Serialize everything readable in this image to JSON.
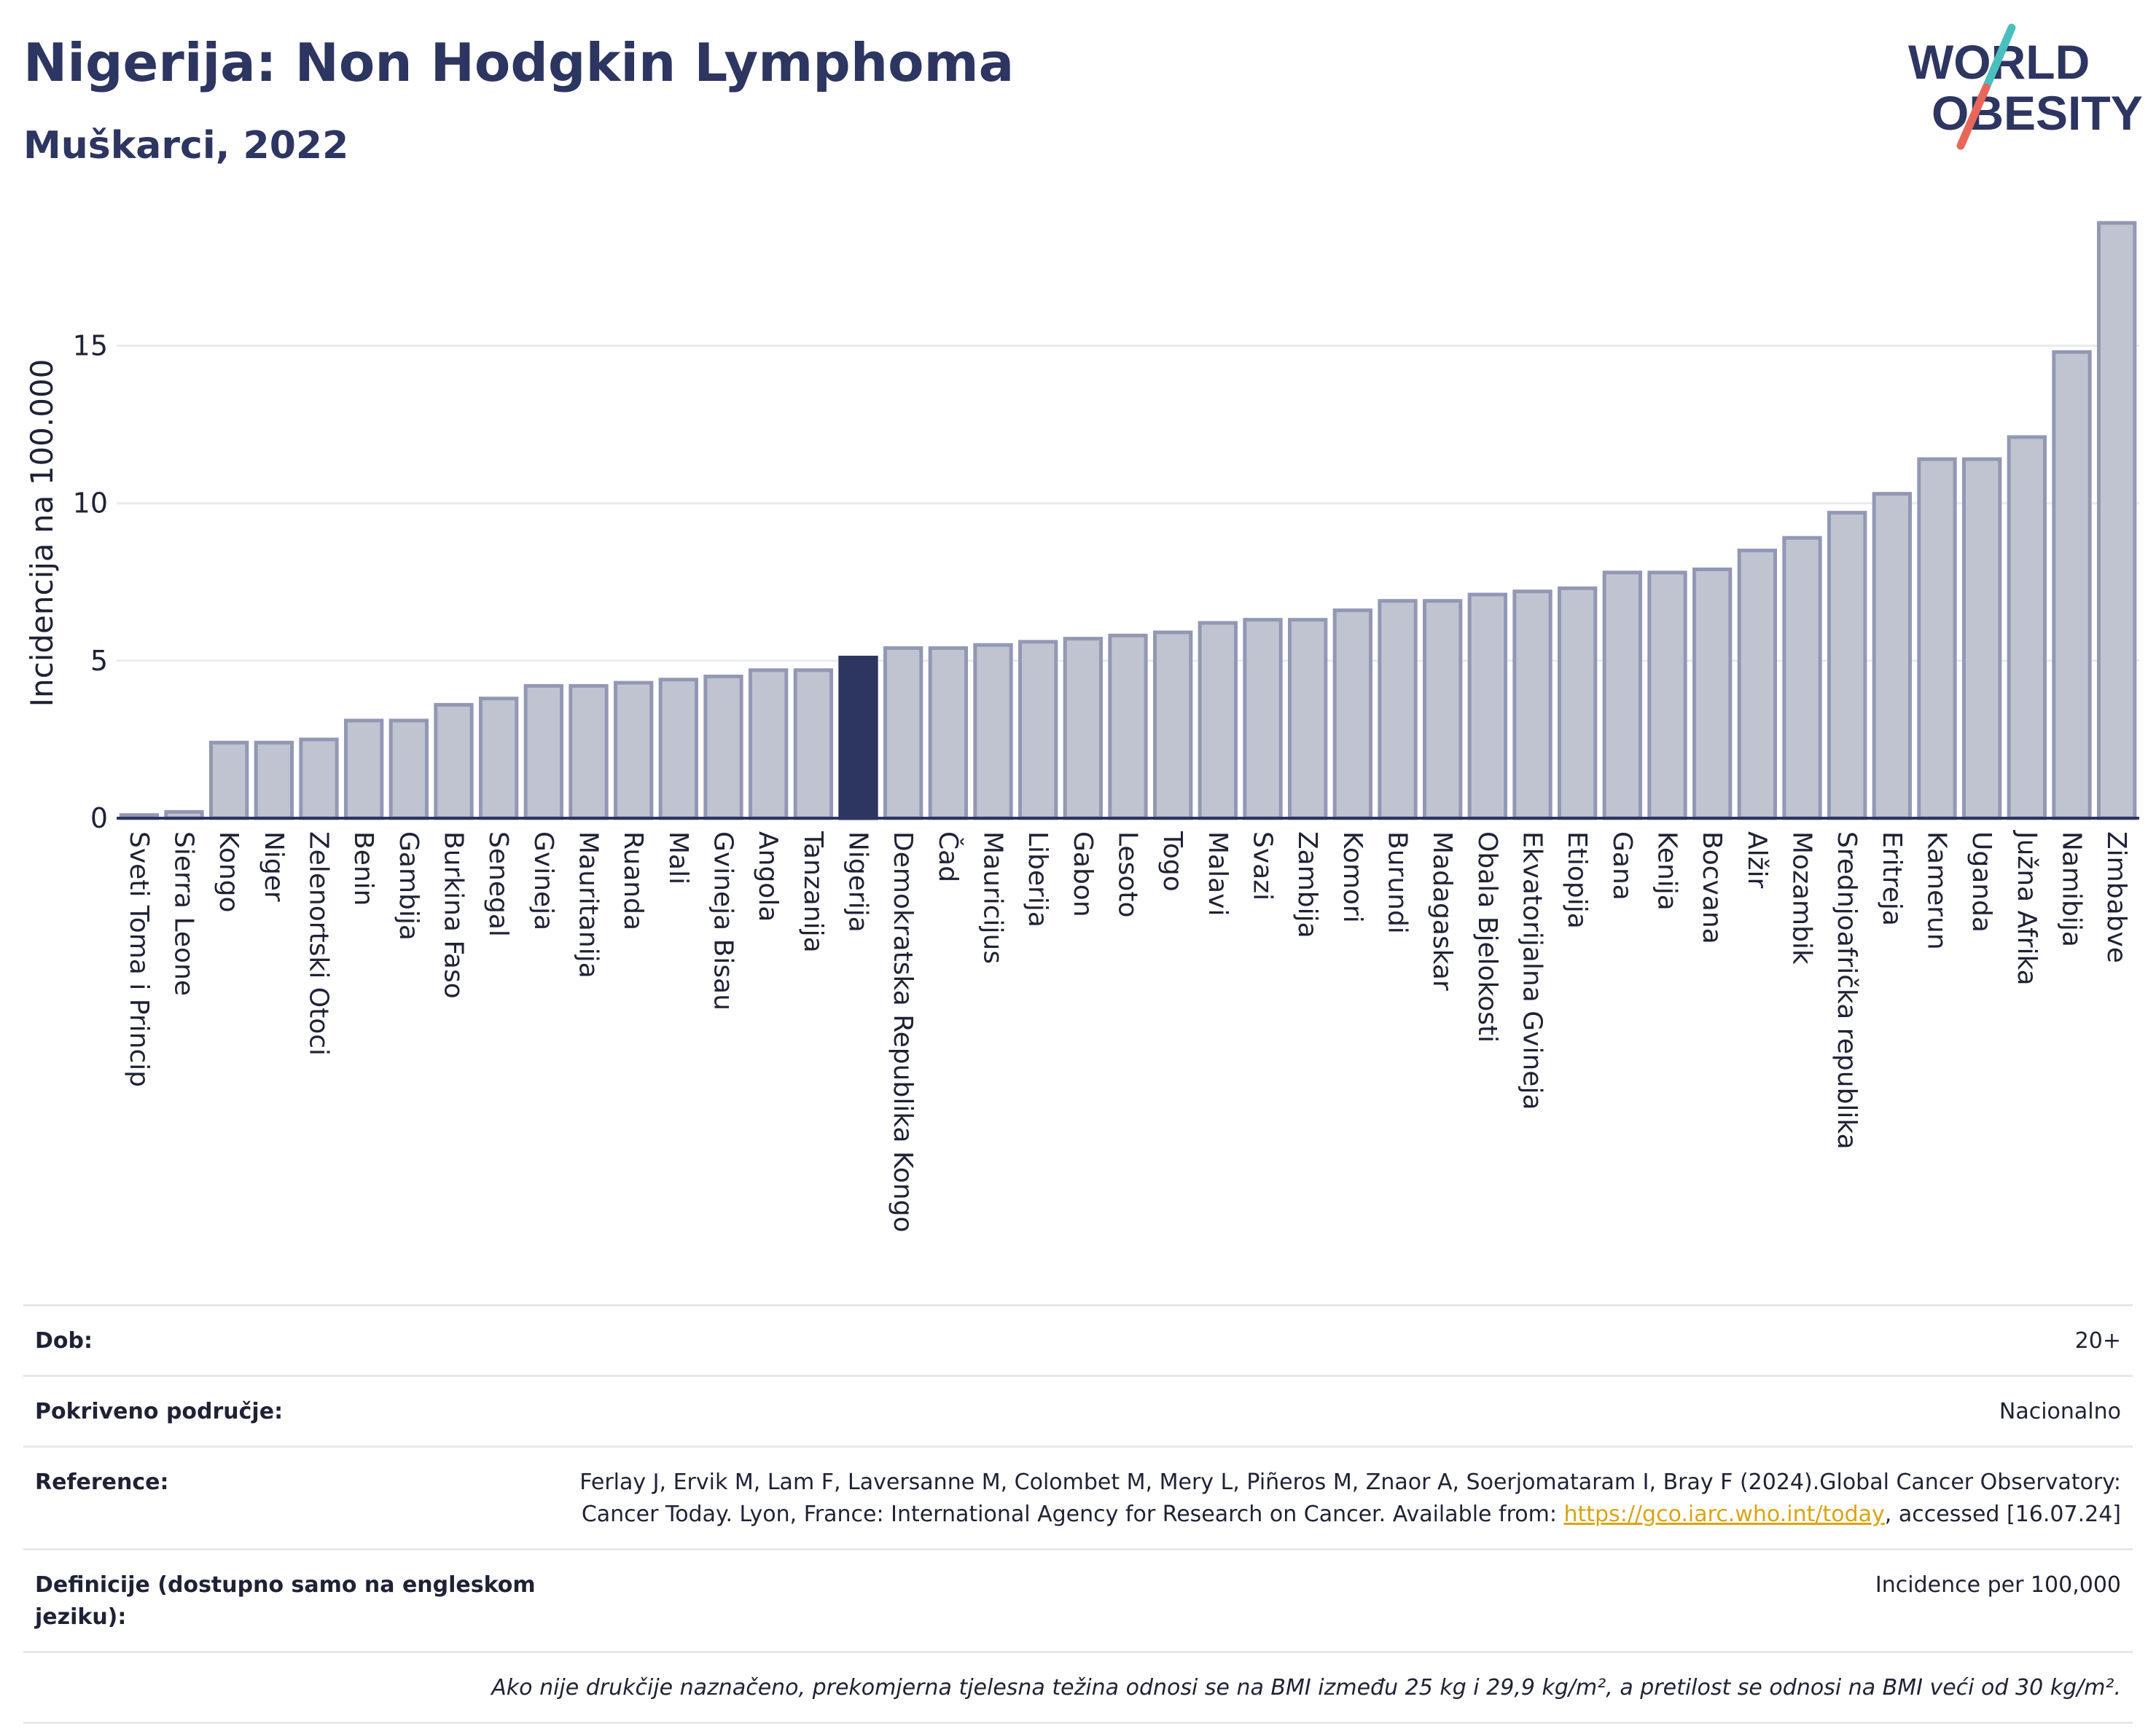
{
  "header": {
    "title": "Nigerija: Non Hodgkin Lymphoma",
    "subtitle": "Muškarci, 2022"
  },
  "logo": {
    "line1": "WORLD",
    "line2": "OBESITY"
  },
  "colors": {
    "bar": "#c0c4d0",
    "bar_edge": "#9298b4",
    "highlight": "#2d3561",
    "title": "#2d3561",
    "logo_teal": "#4bbfbf",
    "logo_red": "#e8675a"
  },
  "chart_data": {
    "type": "bar",
    "title": "Nigerija: Non Hodgkin Lymphoma",
    "subtitle": "Muškarci, 2022",
    "ylabel": "Incidencija na 100.000",
    "xlabel": "",
    "ylim": [
      0,
      19.5
    ],
    "yticks": [
      0,
      5,
      10,
      15
    ],
    "grid": true,
    "highlight": "Nigerija",
    "categories": [
      "Sveti Toma i Princip",
      "Sierra Leone",
      "Kongo",
      "Niger",
      "Zelenortski Otoci",
      "Benin",
      "Gambija",
      "Burkina Faso",
      "Senegal",
      "Gvineja",
      "Mauritanija",
      "Ruanda",
      "Mali",
      "Gvineja Bisau",
      "Angola",
      "Tanzanija",
      "Nigerija",
      "Demokratska Republika Kongo",
      "Čad",
      "Mauricijus",
      "Liberija",
      "Gabon",
      "Lesoto",
      "Togo",
      "Malavi",
      "Svazi",
      "Zambija",
      "Komori",
      "Burundi",
      "Madagaskar",
      "Obala Bjelokosti",
      "Ekvatorijalna Gvineja",
      "Etiopija",
      "Gana",
      "Kenija",
      "Bocvana",
      "Alžir",
      "Mozambik",
      "Srednjoafrička republika",
      "Eritreja",
      "Kamerun",
      "Uganda",
      "Južna Afrika",
      "Namibija",
      "Zimbabve"
    ],
    "values": [
      0.1,
      0.2,
      2.4,
      2.4,
      2.5,
      3.1,
      3.1,
      3.6,
      3.8,
      4.2,
      4.2,
      4.3,
      4.4,
      4.5,
      4.7,
      4.7,
      5.1,
      5.4,
      5.4,
      5.5,
      5.6,
      5.7,
      5.8,
      5.9,
      6.2,
      6.3,
      6.3,
      6.6,
      6.9,
      6.9,
      7.1,
      7.2,
      7.3,
      7.8,
      7.8,
      7.9,
      8.5,
      8.9,
      9.7,
      10.3,
      11.4,
      11.4,
      12.1,
      14.8,
      18.9
    ]
  },
  "info": {
    "age_label": "Dob:",
    "age_value": "20+",
    "coverage_label": "Pokriveno područje:",
    "coverage_value": "Nacionalno",
    "reference_label": "Reference:",
    "reference_text": "Ferlay J, Ervik M, Lam F, Laversanne M, Colombet M, Mery L, Piñeros M, Znaor A, Soerjomataram I, Bray F (2024).Global Cancer Observatory: Cancer Today. Lyon, France: International Agency for Research on Cancer. Available from:",
    "reference_link": "https://gco.iarc.who.int/today",
    "reference_tail": ", accessed [16.07.24]",
    "definitions_label": "Definicije (dostupno samo na engleskom jeziku):",
    "definitions_value": "Incidence per 100,000",
    "note": "Ako nije drukčije naznačeno, prekomjerna tjelesna težina odnosi se na BMI između 25 kg i 29,9 kg/m², a pretilost se odnosi na BMI veći od 30 kg/m²."
  }
}
